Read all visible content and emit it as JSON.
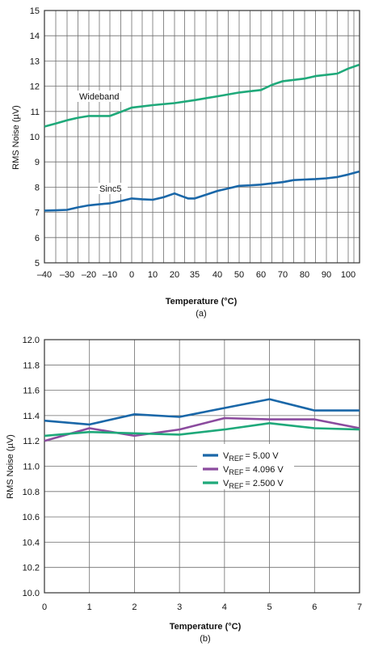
{
  "chart_data": [
    {
      "type": "line",
      "caption": "(a)",
      "xlabel": "Temperature (°C)",
      "ylabel": "RMS Noise (µV)",
      "ylim": [
        5,
        15
      ],
      "yticks": [
        5,
        6,
        7,
        8,
        9,
        10,
        11,
        12,
        13,
        14,
        15
      ],
      "xtick_labels": [
        "–40",
        "–30",
        "–20",
        "–10",
        "0",
        "10",
        "20",
        "35",
        "40",
        "50",
        "60",
        "70",
        "80",
        "90",
        "100"
      ],
      "grid": true,
      "series": [
        {
          "name": "Wideband",
          "color": "#1fa97a",
          "points": [
            [
              -40,
              10.4
            ],
            [
              -35,
              10.52
            ],
            [
              -30,
              10.65
            ],
            [
              -25,
              10.75
            ],
            [
              -20,
              10.82
            ],
            [
              -10,
              10.82
            ],
            [
              -5,
              10.98
            ],
            [
              0,
              11.15
            ],
            [
              5,
              11.2
            ],
            [
              10,
              11.25
            ],
            [
              20,
              11.33
            ],
            [
              35,
              11.45
            ],
            [
              40,
              11.6
            ],
            [
              50,
              11.75
            ],
            [
              55,
              11.8
            ],
            [
              60,
              11.85
            ],
            [
              65,
              12.05
            ],
            [
              70,
              12.2
            ],
            [
              75,
              12.25
            ],
            [
              80,
              12.3
            ],
            [
              85,
              12.4
            ],
            [
              90,
              12.45
            ],
            [
              95,
              12.5
            ],
            [
              100,
              12.7
            ],
            [
              105,
              12.85
            ]
          ]
        },
        {
          "name": "Sinc5",
          "color": "#1a67a8",
          "points": [
            [
              -40,
              7.07
            ],
            [
              -35,
              7.08
            ],
            [
              -30,
              7.1
            ],
            [
              -25,
              7.2
            ],
            [
              -20,
              7.28
            ],
            [
              -15,
              7.32
            ],
            [
              -10,
              7.36
            ],
            [
              -5,
              7.45
            ],
            [
              0,
              7.55
            ],
            [
              5,
              7.52
            ],
            [
              10,
              7.5
            ],
            [
              15,
              7.6
            ],
            [
              20,
              7.75
            ],
            [
              25,
              7.65
            ],
            [
              30,
              7.55
            ],
            [
              35,
              7.55
            ],
            [
              40,
              7.85
            ],
            [
              45,
              7.95
            ],
            [
              50,
              8.05
            ],
            [
              55,
              8.07
            ],
            [
              60,
              8.1
            ],
            [
              65,
              8.15
            ],
            [
              70,
              8.2
            ],
            [
              75,
              8.28
            ],
            [
              80,
              8.3
            ],
            [
              85,
              8.32
            ],
            [
              90,
              8.35
            ],
            [
              95,
              8.4
            ],
            [
              100,
              8.5
            ],
            [
              105,
              8.62
            ]
          ]
        }
      ]
    },
    {
      "type": "line",
      "caption": "(b)",
      "xlabel": "Temperature (°C)",
      "ylabel": "RMS Noise (µV)",
      "xlim": [
        0,
        7
      ],
      "ylim": [
        10.0,
        12.0
      ],
      "xticks": [
        "0",
        "1",
        "2",
        "3",
        "4",
        "5",
        "6",
        "7"
      ],
      "yticks": [
        "10.0",
        "10.2",
        "10.4",
        "10.6",
        "10.8",
        "11.0",
        "11.2",
        "11.4",
        "11.6",
        "11.8",
        "12.0"
      ],
      "grid": true,
      "legend": "center-right",
      "series": [
        {
          "name": "V",
          "sub": "REF",
          "value_label": "= 5.00 V",
          "color": "#1a67a8",
          "x": [
            0,
            1,
            2,
            3,
            4,
            5,
            6,
            7
          ],
          "y": [
            11.36,
            11.33,
            11.41,
            11.39,
            11.46,
            11.53,
            11.44,
            11.44
          ]
        },
        {
          "name": "V",
          "sub": "REF",
          "value_label": "= 4.096 V",
          "color": "#8b4b9e",
          "x": [
            0,
            1,
            2,
            3,
            4,
            5,
            6,
            7
          ],
          "y": [
            11.2,
            11.3,
            11.24,
            11.29,
            11.38,
            11.37,
            11.37,
            11.3
          ]
        },
        {
          "name": "V",
          "sub": "REF",
          "value_label": "= 2.500 V",
          "color": "#1fa97a",
          "x": [
            0,
            1,
            2,
            3,
            4,
            5,
            6,
            7
          ],
          "y": [
            11.24,
            11.27,
            11.26,
            11.25,
            11.29,
            11.34,
            11.3,
            11.29
          ]
        }
      ]
    }
  ]
}
